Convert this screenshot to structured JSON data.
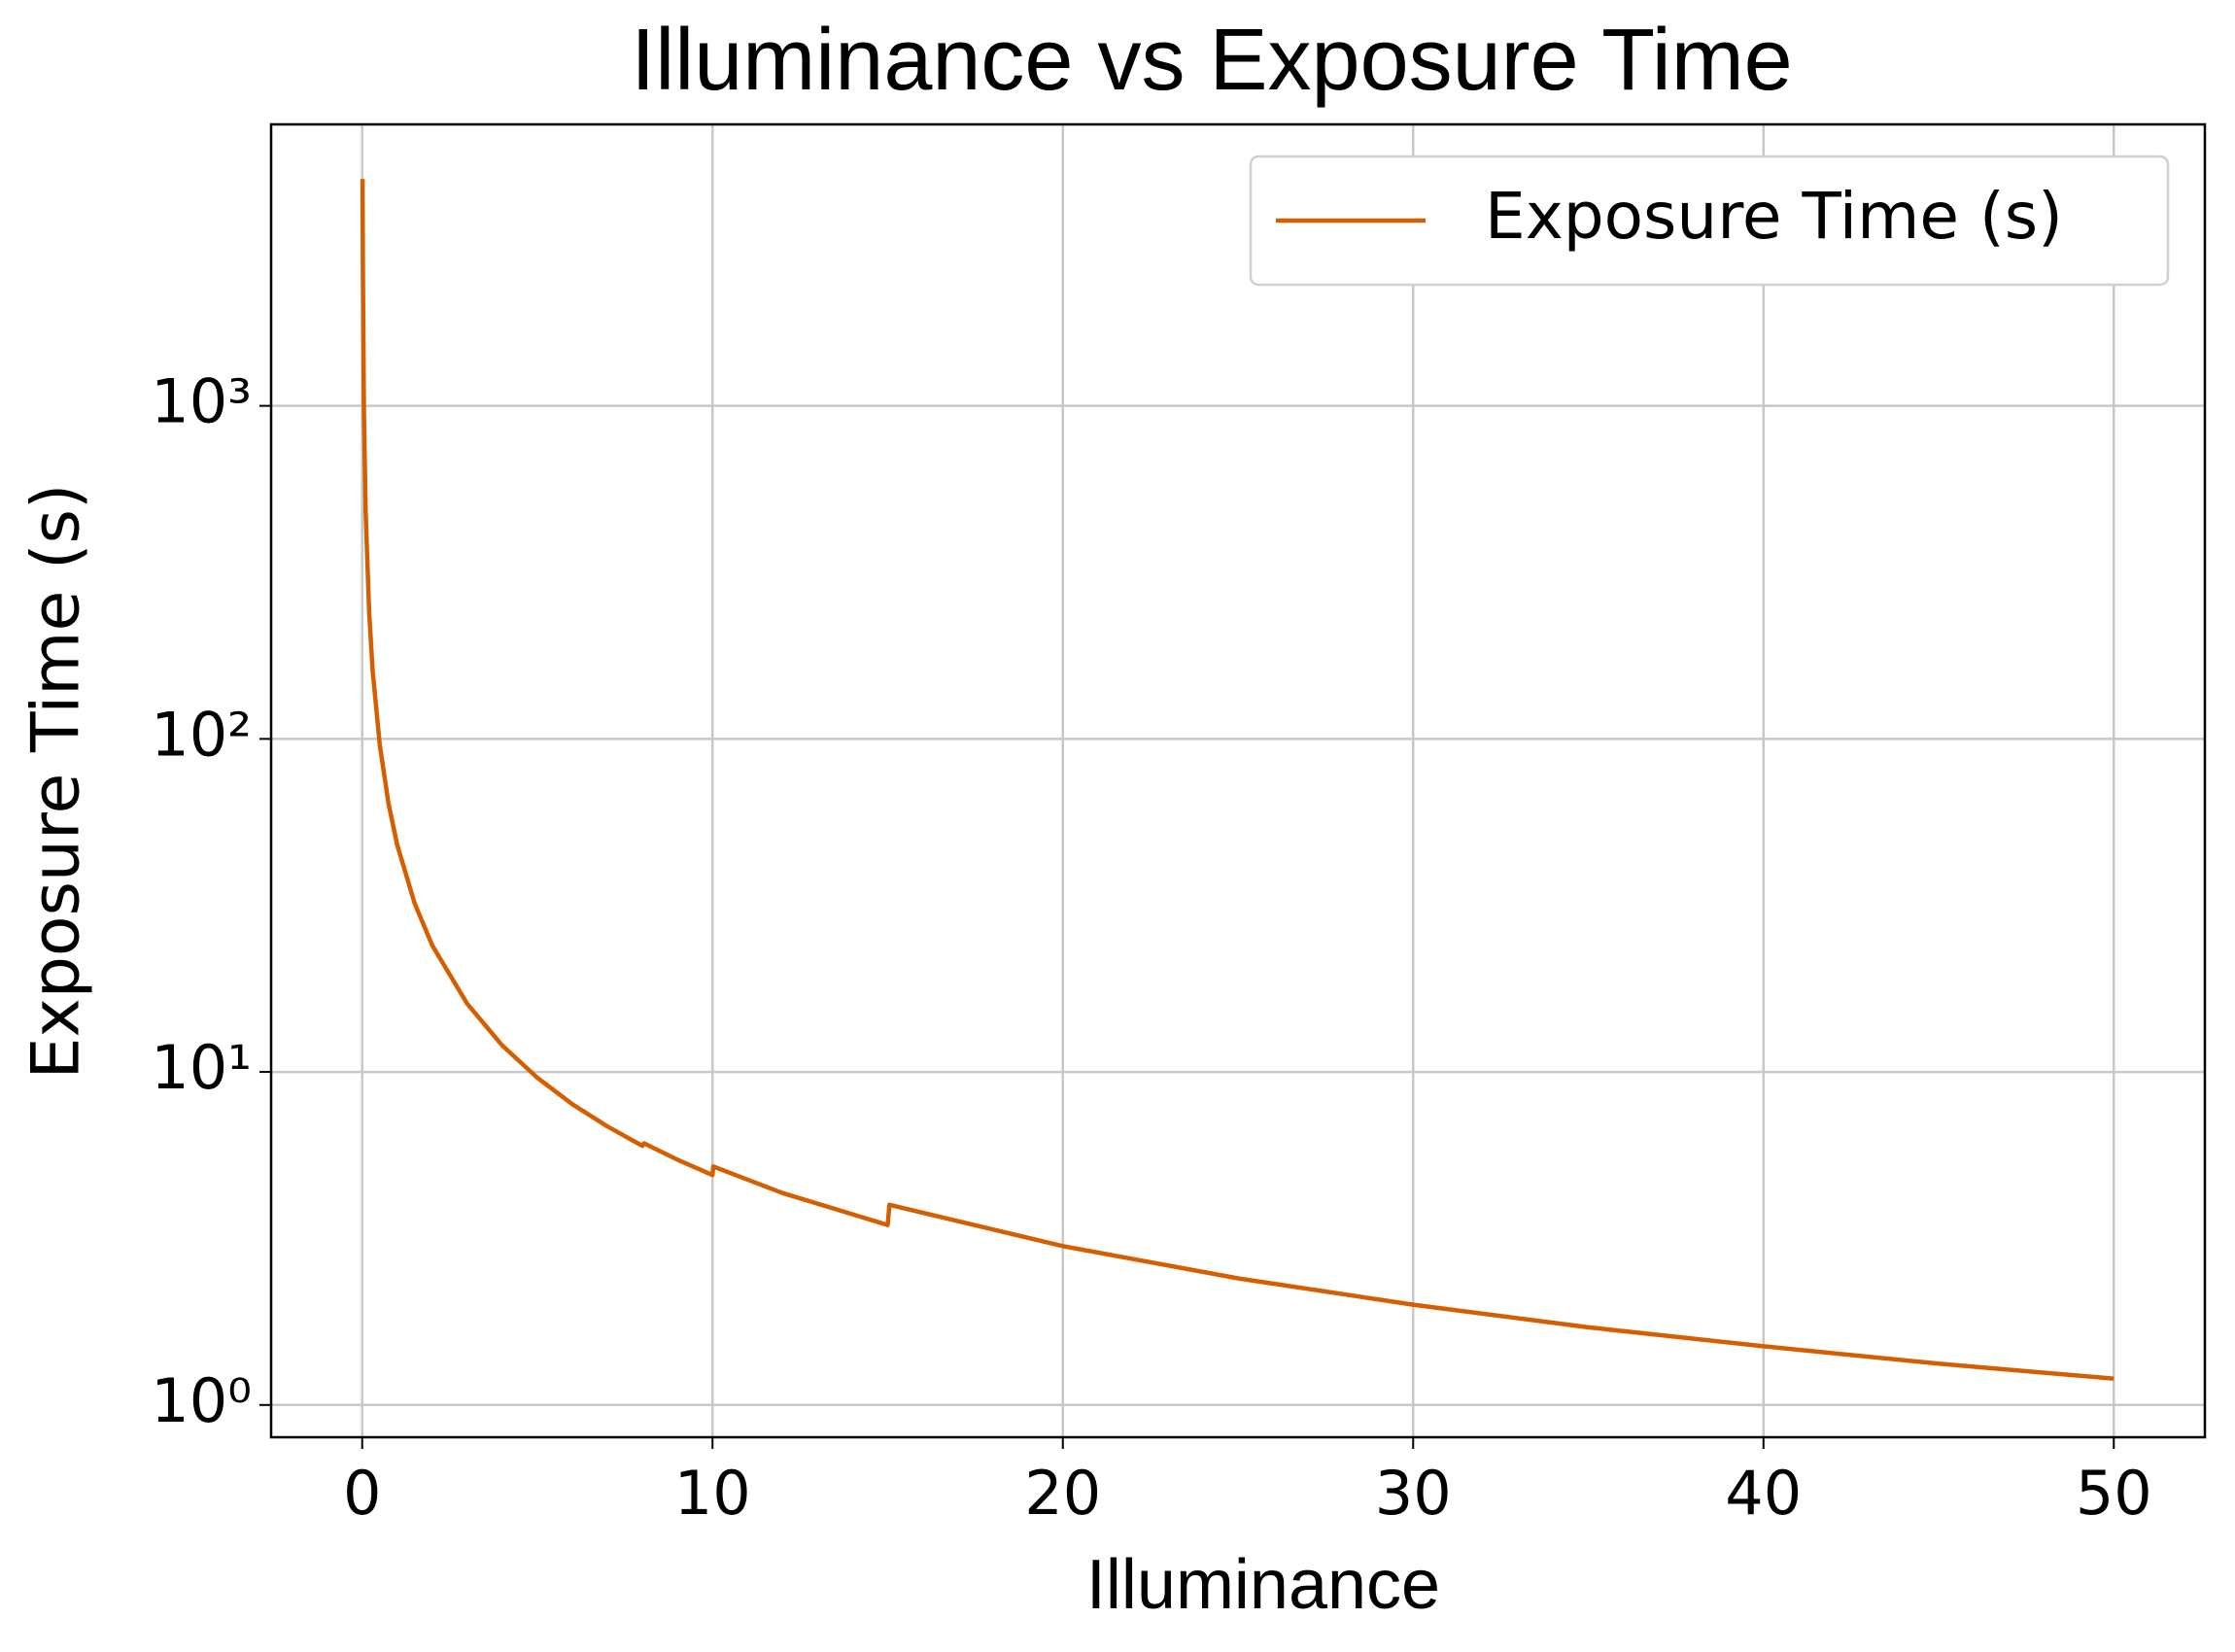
{
  "chart_data": {
    "type": "line",
    "title": "Illuminance vs Exposure Time",
    "x_label": "Illuminance",
    "y_label": "Exposure Time (s)",
    "y_scale": "log",
    "grid": true,
    "legend": "upper right",
    "xlim": [
      -2.6,
      52.6
    ],
    "xticks": [
      0,
      10,
      20,
      30,
      40,
      50
    ],
    "ylim": [
      0.8,
      7000
    ],
    "yticks": [
      {
        "value": 1,
        "label": "10⁰"
      },
      {
        "value": 10,
        "label": "10¹"
      },
      {
        "value": 100,
        "label": "10²"
      },
      {
        "value": 1000,
        "label": "10³"
      }
    ],
    "series": [
      {
        "name": "Exposure Time (s)",
        "color": "#d55e00",
        "x": [
          0.01,
          0.02,
          0.05,
          0.1,
          0.2,
          0.3,
          0.5,
          0.75,
          1,
          1.5,
          2,
          3,
          4,
          5,
          6,
          7,
          8,
          8.05,
          9,
          10,
          10.02,
          12,
          15,
          15.05,
          20,
          25,
          30,
          35,
          40,
          45,
          50
        ],
        "values": [
          4800,
          2400,
          960,
          480,
          240,
          160,
          96,
          64,
          48,
          32,
          24,
          16,
          12,
          9.6,
          8,
          6.86,
          6,
          6.1,
          5.45,
          4.9,
          5.2,
          4.33,
          3.47,
          3.99,
          3,
          2.4,
          2,
          1.71,
          1.5,
          1.33,
          1.2
        ]
      }
    ]
  }
}
